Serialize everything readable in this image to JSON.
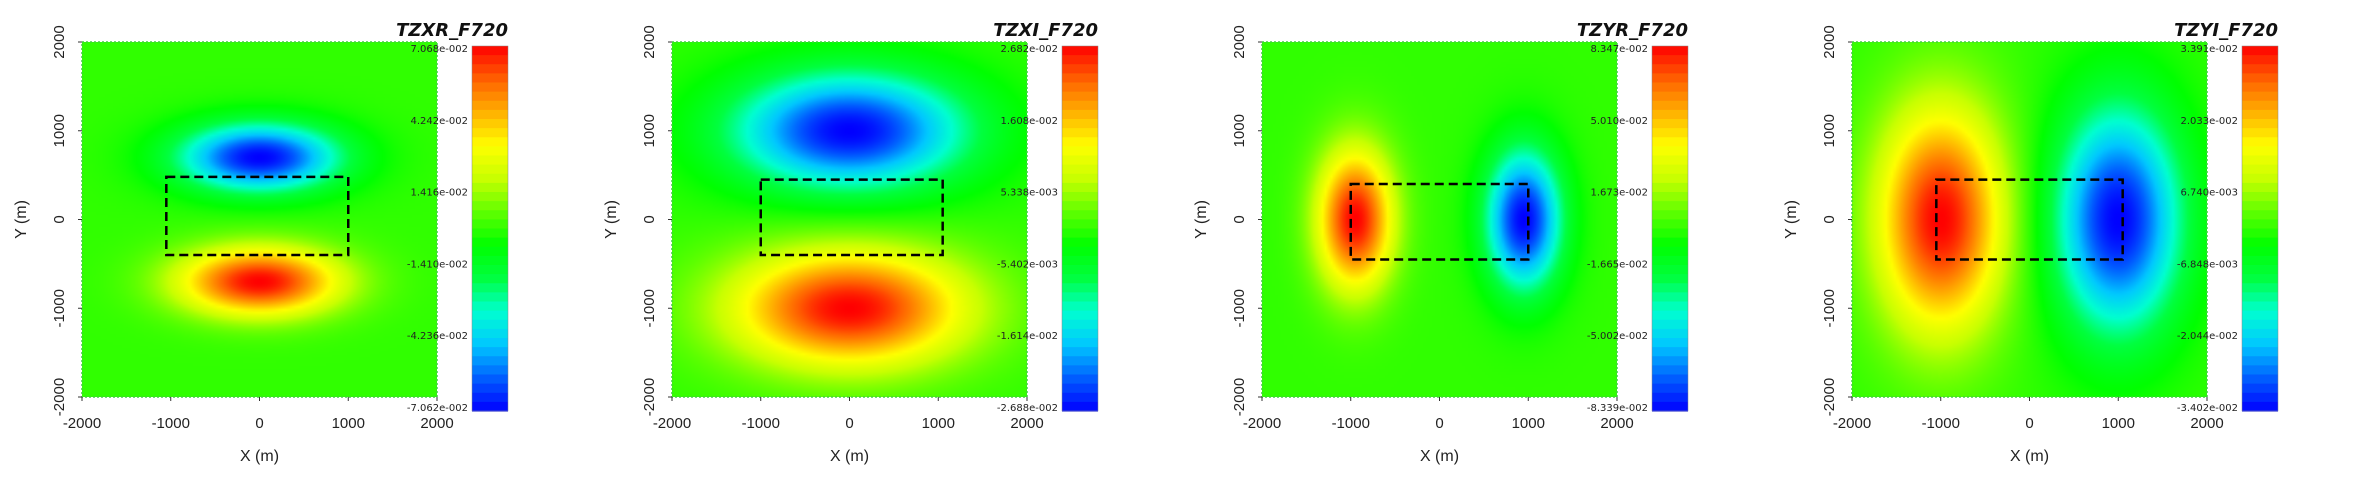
{
  "colors": {
    "colormap": [
      "#0000ff",
      "#0060ff",
      "#00c8ff",
      "#00ffd0",
      "#00ff40",
      "#00ff00",
      "#60ff00",
      "#c8ff00",
      "#ffff00",
      "#ffb000",
      "#ff6000",
      "#ff0000"
    ],
    "box_outline": "#000000",
    "frame_dashes": "#40d040"
  },
  "chart_data": [
    {
      "type": "heatmap",
      "title": "TZXR_F720",
      "xlabel": "X (m)",
      "ylabel": "Y (m)",
      "xlim": [
        -2000,
        2000
      ],
      "ylim": [
        -2000,
        2000
      ],
      "xticks": [
        "-2000",
        "-1000",
        "0",
        "1000",
        "2000"
      ],
      "yticks": [
        "-2000",
        "-1000",
        "0",
        "1000",
        "2000"
      ],
      "colorbar": {
        "min": -0.07062,
        "max": 0.07068,
        "ticks": [
          "7.068e-002",
          "4.242e-002",
          "1.416e-002",
          "-1.410e-002",
          "-4.236e-002",
          "-7.062e-002"
        ]
      },
      "anomalies": [
        {
          "x": 0,
          "y": 700,
          "rx": 900,
          "ry": 380,
          "value": -1
        },
        {
          "x": 0,
          "y": -700,
          "rx": 900,
          "ry": 380,
          "value": 1
        }
      ],
      "box": {
        "x": [
          -1050,
          1000
        ],
        "y": [
          -400,
          480
        ]
      }
    },
    {
      "type": "heatmap",
      "title": "TZXI_F720",
      "xlabel": "X (m)",
      "ylabel": "Y (m)",
      "xlim": [
        -2000,
        2000
      ],
      "ylim": [
        -2000,
        2000
      ],
      "xticks": [
        "-2000",
        "-1000",
        "0",
        "1000",
        "2000"
      ],
      "yticks": [
        "-2000",
        "-1000",
        "0",
        "1000",
        "2000"
      ],
      "colorbar": {
        "min": -0.02688,
        "max": 0.02682,
        "ticks": [
          "2.682e-002",
          "1.608e-002",
          "5.338e-003",
          "-5.402e-003",
          "-1.614e-002",
          "-2.688e-002"
        ]
      },
      "anomalies": [
        {
          "x": 0,
          "y": 1000,
          "rx": 1300,
          "ry": 650,
          "value": -1
        },
        {
          "x": 0,
          "y": -1000,
          "rx": 1300,
          "ry": 650,
          "value": 1
        }
      ],
      "box": {
        "x": [
          -1000,
          1050
        ],
        "y": [
          -400,
          450
        ]
      }
    },
    {
      "type": "heatmap",
      "title": "TZYR_F720",
      "xlabel": "X (m)",
      "ylabel": "Y (m)",
      "xlim": [
        -2000,
        2000
      ],
      "ylim": [
        -2000,
        2000
      ],
      "xticks": [
        "-2000",
        "-1000",
        "0",
        "1000",
        "2000"
      ],
      "yticks": [
        "-2000",
        "-1000",
        "0",
        "1000",
        "2000"
      ],
      "colorbar": {
        "min": -0.08339,
        "max": 0.08347,
        "ticks": [
          "8.347e-002",
          "5.010e-002",
          "1.673e-002",
          "-1.665e-002",
          "-5.002e-002",
          "-8.339e-002"
        ]
      },
      "anomalies": [
        {
          "x": -950,
          "y": 0,
          "rx": 420,
          "ry": 780,
          "value": 1
        },
        {
          "x": 950,
          "y": 0,
          "rx": 420,
          "ry": 780,
          "value": -1
        }
      ],
      "box": {
        "x": [
          -1000,
          1000
        ],
        "y": [
          -450,
          400
        ]
      }
    },
    {
      "type": "heatmap",
      "title": "TZYI_F720",
      "xlabel": "X (m)",
      "ylabel": "Y (m)",
      "xlim": [
        -2000,
        2000
      ],
      "ylim": [
        -2000,
        2000
      ],
      "xticks": [
        "-2000",
        "-1000",
        "0",
        "1000",
        "2000"
      ],
      "yticks": [
        "-2000",
        "-1000",
        "0",
        "1000",
        "2000"
      ],
      "colorbar": {
        "min": -0.03402,
        "max": 0.03391,
        "ticks": [
          "3.391e-002",
          "2.033e-002",
          "6.740e-003",
          "-6.848e-003",
          "-2.044e-002",
          "-3.402e-002"
        ]
      },
      "anomalies": [
        {
          "x": -1000,
          "y": 0,
          "rx": 700,
          "ry": 1250,
          "value": 1
        },
        {
          "x": 1000,
          "y": 0,
          "rx": 700,
          "ry": 1250,
          "value": -1
        }
      ],
      "box": {
        "x": [
          -1050,
          1050
        ],
        "y": [
          -450,
          450
        ]
      }
    }
  ]
}
